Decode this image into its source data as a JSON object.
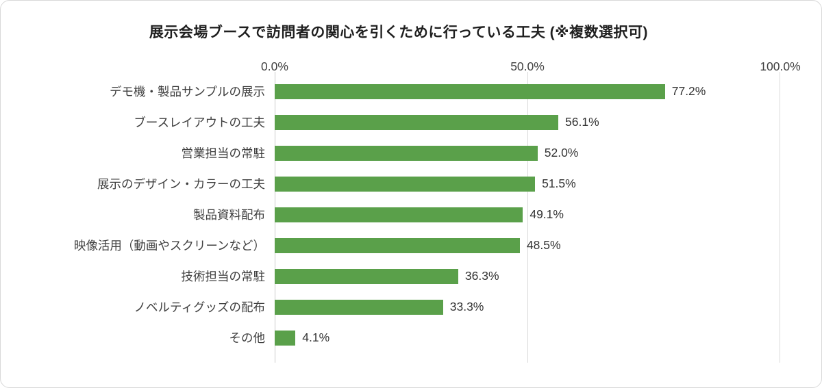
{
  "title": "展示会場ブースで訪問者の関心を引くために行っている工夫 (※複数選択可)",
  "chart_data": {
    "type": "bar",
    "orientation": "horizontal",
    "title": "展示会場ブースで訪問者の関心を引くために行っている工夫 (※複数選択可)",
    "categories": [
      "デモ機・製品サンプルの展示",
      "ブースレイアウトの工夫",
      "営業担当の常駐",
      "展示のデザイン・カラーの工夫",
      "製品資料配布",
      "映像活用（動画やスクリーンなど）",
      "技術担当の常駐",
      "ノベルティグッズの配布",
      "その他"
    ],
    "values": [
      77.2,
      56.1,
      52.0,
      51.5,
      49.1,
      48.5,
      36.3,
      33.3,
      4.1
    ],
    "value_labels": [
      "77.2%",
      "56.1%",
      "52.0%",
      "51.5%",
      "49.1%",
      "48.5%",
      "36.3%",
      "33.3%",
      "4.1%"
    ],
    "axis_ticks": [
      "0.0%",
      "50.0%",
      "100.0%"
    ],
    "xlim": [
      0,
      100
    ],
    "xlabel": "",
    "ylabel": "",
    "grid": "vertical",
    "legend": "none",
    "bar_color": "#5aa04a"
  }
}
